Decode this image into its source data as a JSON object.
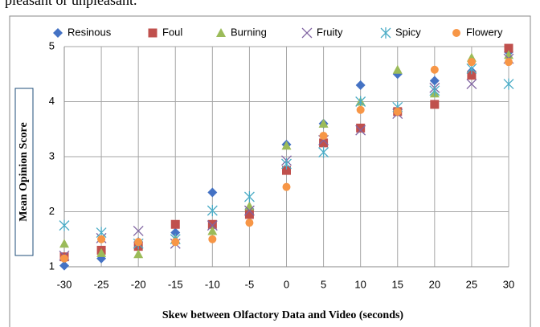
{
  "header_text": "pleasant or unpleasant.",
  "chart_data": {
    "type": "scatter",
    "xlabel": "Skew between Olfactory Data and Video (seconds)",
    "ylabel": "Mean Opinion Score",
    "x": [
      -30,
      -25,
      -20,
      -15,
      -10,
      -5,
      0,
      5,
      10,
      15,
      20,
      25,
      30
    ],
    "xlim": [
      -30,
      30
    ],
    "xticks": [
      -30,
      -25,
      -20,
      -15,
      -10,
      -5,
      0,
      5,
      10,
      15,
      20,
      25,
      30
    ],
    "ylim": [
      1,
      5
    ],
    "yticks": [
      1,
      2,
      3,
      4,
      5
    ],
    "grid": true,
    "legend": "top",
    "series": [
      {
        "name": "Resinous",
        "color": "#4472c4",
        "marker": "diamond",
        "values": [
          1.02,
          1.15,
          1.45,
          1.62,
          2.35,
          2.05,
          3.22,
          3.6,
          4.3,
          4.5,
          4.38,
          4.55,
          4.9
        ]
      },
      {
        "name": "Foul",
        "color": "#c0504d",
        "marker": "square",
        "values": [
          1.18,
          1.3,
          1.37,
          1.77,
          1.77,
          1.95,
          2.75,
          3.25,
          3.52,
          3.82,
          3.95,
          4.48,
          4.97
        ]
      },
      {
        "name": "Burning",
        "color": "#9bbb59",
        "marker": "triangle",
        "values": [
          1.42,
          1.25,
          1.23,
          1.5,
          1.65,
          2.1,
          3.2,
          3.6,
          4.0,
          4.58,
          4.15,
          4.8,
          4.85
        ]
      },
      {
        "name": "Fruity",
        "color": "#8064a2",
        "marker": "x",
        "values": [
          1.2,
          1.52,
          1.65,
          1.42,
          1.75,
          2.02,
          2.93,
          3.3,
          3.48,
          3.78,
          4.25,
          4.32,
          4.78
        ]
      },
      {
        "name": "Spicy",
        "color": "#4bacc6",
        "marker": "star",
        "values": [
          1.75,
          1.62,
          1.42,
          1.5,
          2.02,
          2.27,
          2.87,
          3.08,
          4.0,
          3.9,
          4.2,
          4.6,
          4.32
        ]
      },
      {
        "name": "Flowery",
        "color": "#f79646",
        "marker": "circle",
        "values": [
          1.15,
          1.5,
          1.45,
          1.45,
          1.5,
          1.8,
          2.45,
          3.38,
          3.85,
          3.82,
          4.58,
          4.72,
          4.72
        ]
      }
    ]
  }
}
